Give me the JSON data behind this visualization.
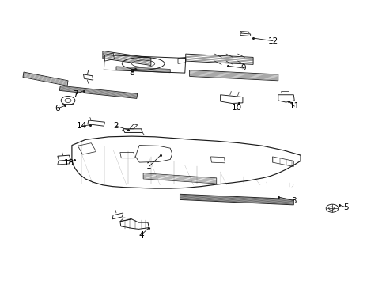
{
  "bg": "#ffffff",
  "lc": "#1a1a1a",
  "tc": "#000000",
  "fw": 4.89,
  "fh": 3.6,
  "dpi": 100,
  "label_positions": {
    "1": [
      0.385,
      0.415,
      0.415,
      0.455
    ],
    "2": [
      0.3,
      0.558,
      0.33,
      0.545
    ],
    "3": [
      0.76,
      0.295,
      0.72,
      0.308
    ],
    "4": [
      0.365,
      0.175,
      0.385,
      0.2
    ],
    "5": [
      0.895,
      0.272,
      0.878,
      0.28
    ],
    "6": [
      0.148,
      0.62,
      0.167,
      0.63
    ],
    "7": [
      0.195,
      0.67,
      0.215,
      0.682
    ],
    "8": [
      0.34,
      0.745,
      0.35,
      0.76
    ],
    "9": [
      0.63,
      0.762,
      0.59,
      0.77
    ],
    "10": [
      0.612,
      0.622,
      0.618,
      0.64
    ],
    "11": [
      0.762,
      0.628,
      0.748,
      0.645
    ],
    "12": [
      0.706,
      0.858,
      0.655,
      0.868
    ],
    "13": [
      0.178,
      0.428,
      0.192,
      0.438
    ],
    "14": [
      0.21,
      0.558,
      0.232,
      0.562
    ]
  }
}
